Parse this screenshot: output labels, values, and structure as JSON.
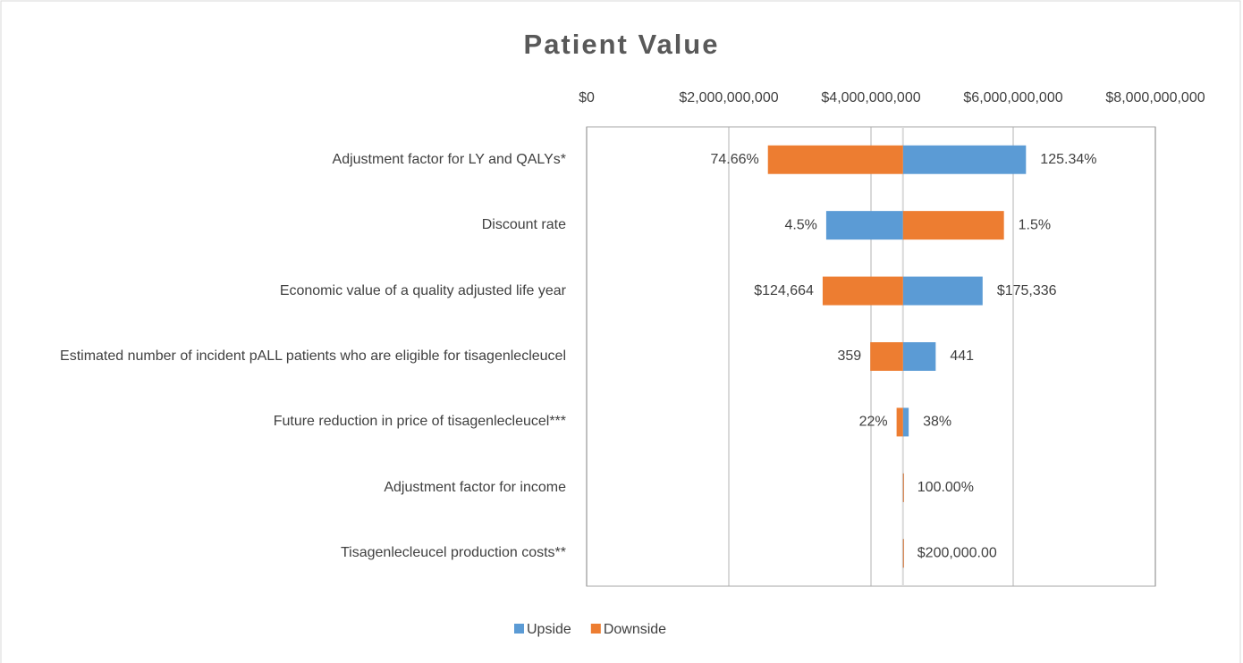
{
  "chart_data": {
    "type": "tornado",
    "title": "Patient Value",
    "categories": [
      "Adjustment factor for LY and QALYs*",
      "Discount rate",
      "Economic value of a quality adjusted life year",
      "Estimated number of incident pALL patients who are eligible for tisagenlecleucel",
      "Future reduction in price of tisagenlecleucel***",
      "Adjustment factor for income",
      "Tisagenlecleucel production costs**"
    ],
    "base": 4450000000,
    "series": [
      {
        "name": "Upside",
        "color": "#5b9bd5",
        "values": [
          6180000000,
          3370000000,
          5570000000,
          4910000000,
          4530000000,
          4450000000,
          4450000000
        ],
        "labels": [
          "125.34%",
          "4.5%",
          "$175,336",
          "441",
          "38%",
          "100.00%",
          "$200,000.00"
        ]
      },
      {
        "name": "Downside",
        "color": "#ed7d31",
        "values": [
          2550000000,
          5870000000,
          3320000000,
          3990000000,
          4360000000,
          4450000000,
          4450000000
        ],
        "labels": [
          "74.66%",
          "1.5%",
          "$124,664",
          "359",
          "22%",
          null,
          null
        ]
      }
    ],
    "xlim": [
      0,
      8000000000
    ],
    "xticks": [
      {
        "value": 0,
        "label": "$0"
      },
      {
        "value": 2000000000,
        "label": "$2,000,000,000"
      },
      {
        "value": 4000000000,
        "label": "$4,000,000,000"
      },
      {
        "value": 6000000000,
        "label": "$6,000,000,000"
      },
      {
        "value": 8000000000,
        "label": "$8,000,000,000"
      }
    ],
    "grid": true,
    "legend": "bottom"
  }
}
